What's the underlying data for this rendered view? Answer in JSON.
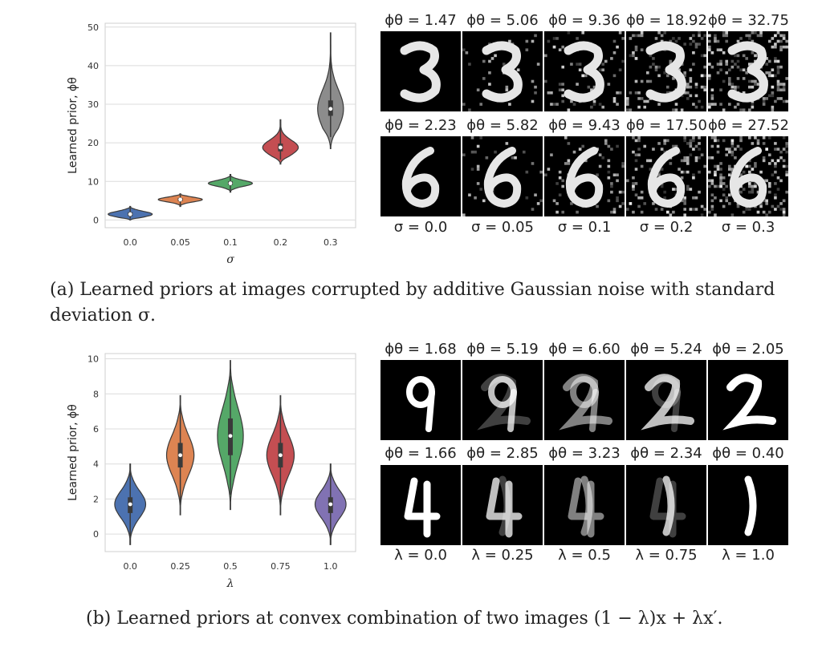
{
  "chart_data": [
    {
      "type": "violin",
      "panel": "a",
      "xlabel": "σ",
      "ylabel": "Learned prior, ϕθ",
      "ylim": [
        -2,
        51
      ],
      "yticks": [
        0,
        10,
        20,
        30,
        40,
        50
      ],
      "categories": [
        "0.0",
        "0.05",
        "0.1",
        "0.2",
        "0.3"
      ],
      "grid": true,
      "series": [
        {
          "color": "#4c72b0",
          "median": 1.5,
          "q1": 1.0,
          "q3": 2.0,
          "min": 0.0,
          "max": 3.5
        },
        {
          "color": "#dd8452",
          "median": 5.3,
          "q1": 4.9,
          "q3": 5.7,
          "min": 3.5,
          "max": 6.8
        },
        {
          "color": "#55a868",
          "median": 9.5,
          "q1": 9.1,
          "q3": 10.0,
          "min": 7.2,
          "max": 11.8
        },
        {
          "color": "#c44e52",
          "median": 18.8,
          "q1": 17.8,
          "q3": 19.8,
          "min": 14.5,
          "max": 26.0
        },
        {
          "color": "#8c8c8c",
          "median": 28.8,
          "q1": 27.0,
          "q3": 31.0,
          "min": 18.5,
          "max": 48.5
        }
      ]
    },
    {
      "type": "violin",
      "panel": "b",
      "xlabel": "λ",
      "ylabel": "Learned prior, ϕθ",
      "ylim": [
        -1,
        10.3
      ],
      "yticks": [
        0,
        2,
        4,
        6,
        8,
        10
      ],
      "categories": [
        "0.0",
        "0.25",
        "0.5",
        "0.75",
        "1.0"
      ],
      "grid": true,
      "series": [
        {
          "color": "#4c72b0",
          "median": 1.7,
          "q1": 1.2,
          "q3": 2.1,
          "min": -0.6,
          "max": 4.0
        },
        {
          "color": "#dd8452",
          "median": 4.5,
          "q1": 3.8,
          "q3": 5.2,
          "min": 1.1,
          "max": 7.9
        },
        {
          "color": "#55a868",
          "median": 5.6,
          "q1": 4.5,
          "q3": 6.6,
          "min": 1.4,
          "max": 9.9
        },
        {
          "color": "#c44e52",
          "median": 4.5,
          "q1": 3.8,
          "q3": 5.2,
          "min": 1.1,
          "max": 7.9
        },
        {
          "color": "#8172b3",
          "median": 1.7,
          "q1": 1.2,
          "q3": 2.1,
          "min": -0.6,
          "max": 4.0
        }
      ]
    }
  ],
  "panel_a": {
    "row1_phi": [
      "ϕθ = 1.47",
      "ϕθ = 5.06",
      "ϕθ = 9.36",
      "ϕθ = 18.92",
      "ϕθ = 32.75"
    ],
    "row2_phi": [
      "ϕθ = 2.23",
      "ϕθ = 5.82",
      "ϕθ = 9.43",
      "ϕθ = 17.50",
      "ϕθ = 27.52"
    ],
    "params": [
      "σ = 0.0",
      "σ = 0.05",
      "σ = 0.1",
      "σ = 0.2",
      "σ = 0.3"
    ],
    "caption_line1": "(a) Learned priors at images corrupted by additive Gaussian noise with standard",
    "caption_line2": "deviation σ."
  },
  "panel_b": {
    "row1_phi": [
      "ϕθ = 1.68",
      "ϕθ = 5.19",
      "ϕθ = 6.60",
      "ϕθ = 5.24",
      "ϕθ = 2.05"
    ],
    "row2_phi": [
      "ϕθ = 1.66",
      "ϕθ = 2.85",
      "ϕθ = 3.23",
      "ϕθ = 2.34",
      "ϕθ = 0.40"
    ],
    "params": [
      "λ = 0.0",
      "λ = 0.25",
      "λ = 0.5",
      "λ = 0.75",
      "λ = 1.0"
    ],
    "caption": "(b) Learned priors at convex combination of two images (1 − λ)x + λx′."
  }
}
